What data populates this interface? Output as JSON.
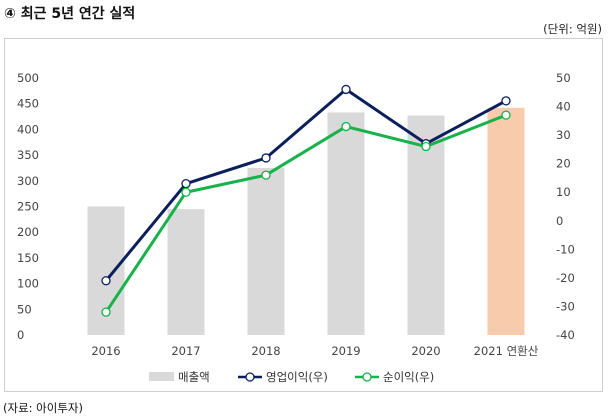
{
  "title": "④ 최근 5년 연간 실적",
  "unit": "(단위: 억원)",
  "source": "(자료: 아이투자)",
  "chart_data": {
    "type": "bar",
    "categories": [
      "2016",
      "2017",
      "2018",
      "2019",
      "2020",
      "2021 연환산"
    ],
    "series": [
      {
        "name": "매출액",
        "type": "bar",
        "axis": "left",
        "values": [
          250,
          245,
          325,
          433,
          427,
          442
        ],
        "color": "#d9d9d9",
        "highlight_last_color": "#f8cbad"
      },
      {
        "name": "영업이익(우)",
        "type": "line",
        "axis": "right",
        "values": [
          -21,
          13,
          22,
          46,
          27,
          42
        ],
        "color": "#0b1f5c"
      },
      {
        "name": "순이익(우)",
        "type": "line",
        "axis": "right",
        "values": [
          -32,
          10,
          16,
          33,
          26,
          37
        ],
        "color": "#17b24a"
      }
    ],
    "y_left": {
      "min": 0,
      "max": 500,
      "step": 50,
      "ticks": [
        "0",
        "50",
        "100",
        "150",
        "200",
        "250",
        "300",
        "350",
        "400",
        "450",
        "500"
      ]
    },
    "y_right": {
      "min": -40,
      "max": 50,
      "step": 10,
      "ticks": [
        "-40",
        "-30",
        "-20",
        "-10",
        "0",
        "10",
        "20",
        "30",
        "40",
        "50"
      ]
    },
    "legend": [
      "매출액",
      "영업이익(우)",
      "순이익(우)"
    ],
    "legend_position": "bottom"
  }
}
